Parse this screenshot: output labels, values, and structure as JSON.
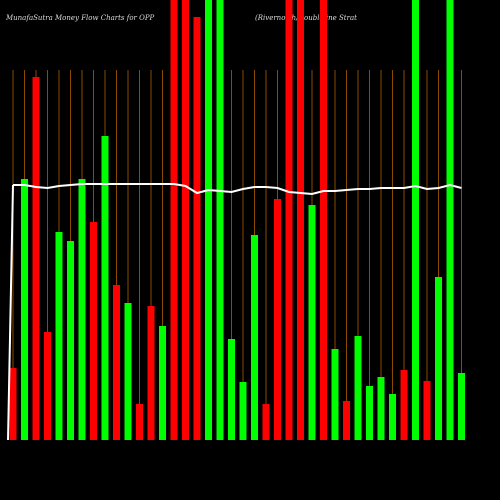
{
  "chart_data": {
    "type": "bar",
    "title": "MunafaSutra  Money Flow  Charts for OPP",
    "subtitle": "(Rivernorth/Doubleline  Strat",
    "ylim": [
      0,
      440
    ],
    "series": [
      {
        "name": "money flow",
        "values": [
          72,
          261,
          363,
          108,
          208,
          199,
          261,
          218,
          304,
          155,
          137,
          36,
          134,
          114,
          440,
          440,
          423,
          440,
          440,
          101,
          58,
          205,
          36,
          241,
          440,
          440,
          235,
          440,
          91,
          39,
          104,
          54,
          63,
          46,
          70,
          440,
          59,
          163,
          440,
          67
        ],
        "colors": [
          "#ff0000",
          "#00ff00",
          "#ff0000",
          "#ff0000",
          "#00ff00",
          "#00ff00",
          "#00ff00",
          "#ff0000",
          "#00ff00",
          "#ff0000",
          "#00ff00",
          "#ff0000",
          "#ff0000",
          "#00ff00",
          "#ff0000",
          "#ff0000",
          "#ff0000",
          "#00ff00",
          "#00ff00",
          "#00ff00",
          "#00ff00",
          "#00ff00",
          "#ff0000",
          "#ff0000",
          "#ff0000",
          "#ff0000",
          "#00ff00",
          "#ff0000",
          "#00ff00",
          "#ff0000",
          "#00ff00",
          "#00ff00",
          "#00ff00",
          "#00ff00",
          "#ff0000",
          "#00ff00",
          "#ff0000",
          "#00ff00",
          "#00ff00",
          "#00ff00"
        ]
      },
      {
        "name": "price",
        "type": "line",
        "color": "#ffffff",
        "values": [
          255,
          255,
          253,
          252,
          254,
          255,
          256,
          256,
          256,
          256,
          256,
          256,
          256,
          256,
          256,
          254,
          247,
          250,
          249,
          248,
          251,
          253,
          253,
          252,
          248,
          247,
          246,
          249,
          249,
          250,
          251,
          251,
          252,
          252,
          252,
          254,
          251,
          252,
          255,
          252
        ]
      }
    ]
  }
}
